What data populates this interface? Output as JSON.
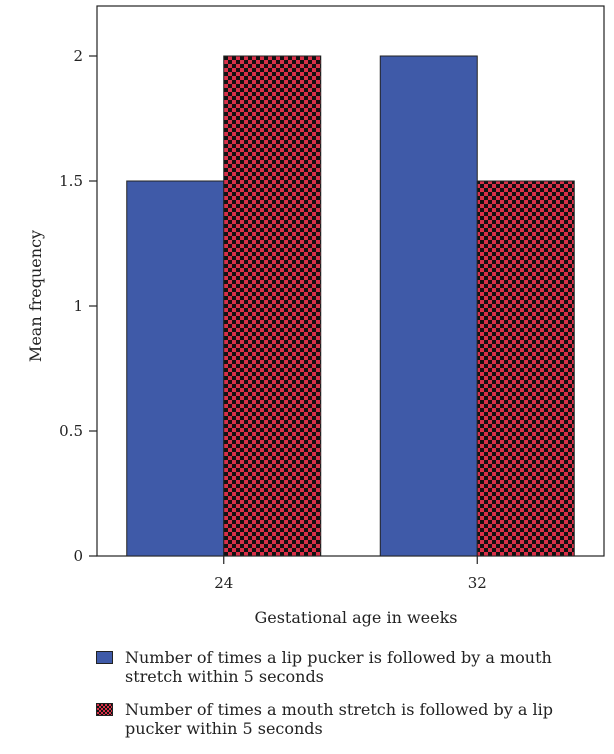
{
  "chart_data": {
    "type": "bar",
    "categories": [
      "24",
      "32"
    ],
    "series": [
      {
        "name": "Number of times a lip pucker is followed by a mouth stretch within 5 seconds",
        "values": [
          1.5,
          2.0
        ],
        "color": "#3f5aa8",
        "pattern": "solid"
      },
      {
        "name": "Number of times a mouth stretch is followed by a lip pucker within 5 seconds",
        "values": [
          2.0,
          1.5
        ],
        "color": "#d83048",
        "pattern": "checkerboard"
      }
    ],
    "title": "",
    "xlabel": "Gestational age in weeks",
    "ylabel": "Mean frequency",
    "ylim": [
      0,
      2.2
    ],
    "yticks": [
      0,
      0.5,
      1,
      1.5,
      2
    ],
    "ytick_labels": [
      "0",
      "0.5",
      "1",
      "1.5",
      "2"
    ],
    "grid": false,
    "legend_position": "bottom"
  }
}
